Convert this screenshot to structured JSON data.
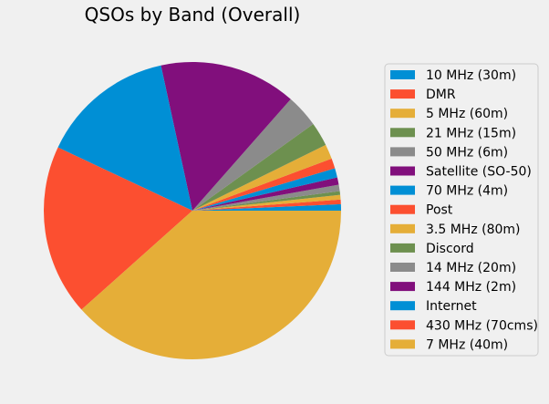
{
  "chart_data": {
    "type": "pie",
    "title": "QSOs by Band (Overall)",
    "legend_position": "right",
    "grid": false,
    "start_angle_deg": 0,
    "direction": "counterclockwise",
    "slices": [
      {
        "label": "10 MHz (30m)",
        "value": 0.7,
        "color": "#008fd5"
      },
      {
        "label": "DMR",
        "value": 0.5,
        "color": "#fc4f30"
      },
      {
        "label": "5 MHz (60m)",
        "value": 0.5,
        "color": "#e5ae38"
      },
      {
        "label": "21 MHz (15m)",
        "value": 0.4,
        "color": "#6d904f"
      },
      {
        "label": "50 MHz (6m)",
        "value": 0.7,
        "color": "#8b8b8b"
      },
      {
        "label": "Satellite (SO-50)",
        "value": 0.8,
        "color": "#810f7c"
      },
      {
        "label": "70 MHz (4m)",
        "value": 1.0,
        "color": "#008fd5"
      },
      {
        "label": "Post",
        "value": 1.1,
        "color": "#fc4f30"
      },
      {
        "label": "3.5 MHz (80m)",
        "value": 1.6,
        "color": "#e5ae38"
      },
      {
        "label": "Discord",
        "value": 2.6,
        "color": "#6d904f"
      },
      {
        "label": "14 MHz (20m)",
        "value": 3.6,
        "color": "#8b8b8b"
      },
      {
        "label": "144 MHz (2m)",
        "value": 14.9,
        "color": "#810f7c"
      },
      {
        "label": "Internet",
        "value": 14.6,
        "color": "#008fd5"
      },
      {
        "label": "430 MHz (70cms)",
        "value": 18.6,
        "color": "#fc4f30"
      },
      {
        "label": "7 MHz (40m)",
        "value": 38.4,
        "color": "#e5ae38"
      }
    ]
  }
}
